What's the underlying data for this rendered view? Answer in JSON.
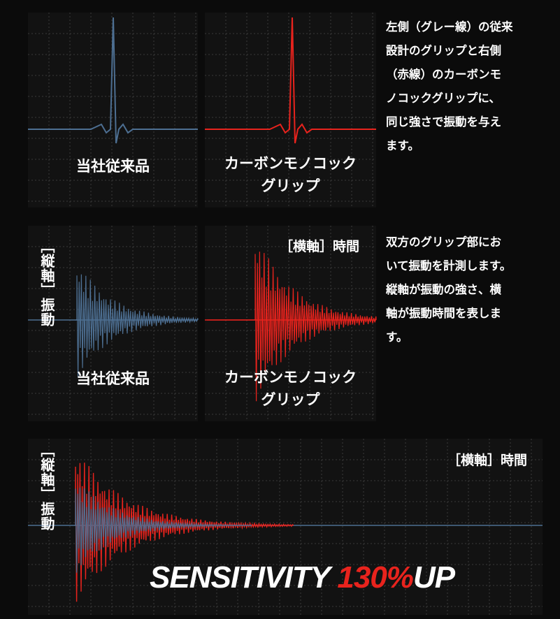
{
  "comparison": {
    "left_label": "当社従来品",
    "right_label": [
      "カーボンモノコック",
      "グリップ"
    ],
    "description": [
      "左側（グレー線）の従来",
      "設計のグリップと右側",
      "（赤線）のカーボンモ",
      "ノコックグリップに、",
      "同じ強さで振動を与え",
      "ます。"
    ]
  },
  "measurement": {
    "y_axis": "［縦軸］振動",
    "x_axis": "［横軸］時間",
    "left_label": "当社従来品",
    "right_label": [
      "カーボンモノコック",
      "グリップ"
    ],
    "description": [
      "双方のグリップ部にお",
      "いて振動を計測します。",
      "縦軸が振動の強さ、横",
      "軸が振動時間を表しま",
      "す。"
    ]
  },
  "overlay": {
    "y_axis": "［縦軸］振動",
    "x_axis": "［横軸］時間",
    "headline": {
      "text": "SENSITIVITY",
      "value": "130%",
      "suffix": "UP"
    }
  }
}
